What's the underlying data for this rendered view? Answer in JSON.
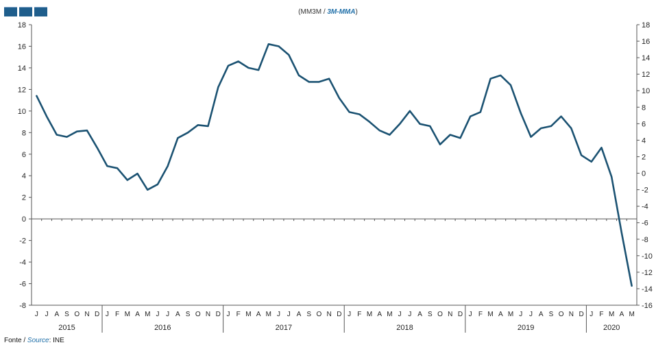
{
  "title": {
    "pt": "(MM3M / ",
    "en": "3M-MMA",
    "close": ")"
  },
  "source": {
    "pt": "Fonte / ",
    "en": "Source",
    "sep": ": ",
    "value": "INE"
  },
  "colors": {
    "line": "#1b5272",
    "legend_box": "#1f5e8c",
    "english_text": "#1f6fa8"
  },
  "legend_icons": [
    "legend-box-icon",
    "legend-box-icon",
    "legend-box-icon"
  ],
  "chart_data": {
    "type": "line",
    "title": "(MM3M / 3M-MMA)",
    "grid": false,
    "y_left": {
      "min": -8,
      "max": 18,
      "step": 2,
      "ticks": [
        -8,
        -6,
        -4,
        -2,
        0,
        2,
        4,
        6,
        8,
        10,
        12,
        14,
        16,
        18
      ]
    },
    "y_right": {
      "min": -16,
      "max": 18,
      "step": 2,
      "ticks": [
        -16,
        -14,
        -12,
        -10,
        -8,
        -6,
        -4,
        -2,
        0,
        2,
        4,
        6,
        8,
        10,
        12,
        14,
        16,
        18
      ]
    },
    "x_month_labels": [
      "J",
      "J",
      "A",
      "S",
      "O",
      "N",
      "D",
      "J",
      "F",
      "M",
      "A",
      "M",
      "J",
      "J",
      "A",
      "S",
      "O",
      "N",
      "D",
      "J",
      "F",
      "M",
      "A",
      "M",
      "J",
      "J",
      "A",
      "S",
      "O",
      "N",
      "D",
      "J",
      "F",
      "M",
      "A",
      "M",
      "J",
      "J",
      "A",
      "S",
      "O",
      "N",
      "D",
      "J",
      "F",
      "M",
      "A",
      "M",
      "J",
      "J",
      "A",
      "S",
      "O",
      "N",
      "D",
      "J",
      "F",
      "M",
      "A",
      "M"
    ],
    "years": [
      {
        "label": "2015",
        "start": 0,
        "count": 7
      },
      {
        "label": "2016",
        "start": 7,
        "count": 12
      },
      {
        "label": "2017",
        "start": 19,
        "count": 12
      },
      {
        "label": "2018",
        "start": 31,
        "count": 12
      },
      {
        "label": "2019",
        "start": 43,
        "count": 12
      },
      {
        "label": "2020",
        "start": 55,
        "count": 5
      }
    ],
    "series": [
      {
        "axis": "left",
        "values": [
          11.4,
          9.5,
          7.8,
          7.6,
          8.1,
          8.2,
          6.6,
          4.9,
          4.7,
          3.6,
          4.2,
          2.7,
          3.2,
          4.9,
          7.5,
          8.0,
          8.7,
          8.6,
          12.2,
          14.2,
          14.6,
          14.0,
          13.8,
          16.2,
          16.0,
          15.2,
          13.3,
          12.7,
          12.7,
          13.0,
          11.2,
          9.9,
          9.7,
          9.0,
          8.2,
          7.8,
          8.8,
          10.0,
          8.8,
          8.6,
          6.9,
          7.8,
          7.5,
          9.5,
          9.9,
          13.0,
          13.3,
          12.4,
          9.8,
          7.6,
          8.4,
          8.6,
          9.5,
          8.4,
          5.9,
          5.3,
          6.6,
          3.9,
          -1.3,
          -6.2
        ]
      }
    ]
  }
}
